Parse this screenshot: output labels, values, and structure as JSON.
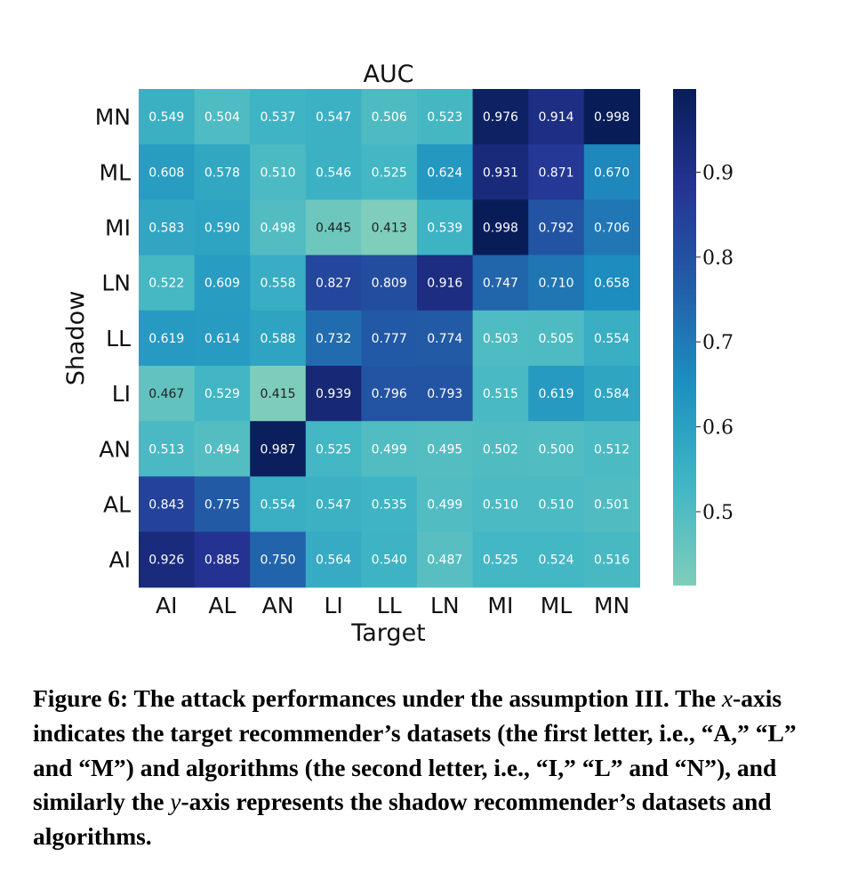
{
  "chart_data": {
    "type": "heatmap",
    "title": "AUC",
    "xlabel": "Target",
    "ylabel": "Shadow",
    "x_categories": [
      "AI",
      "AL",
      "AN",
      "LI",
      "LL",
      "LN",
      "MI",
      "ML",
      "MN"
    ],
    "y_categories": [
      "MN",
      "ML",
      "MI",
      "LN",
      "LL",
      "LI",
      "AN",
      "AL",
      "AI"
    ],
    "values": [
      [
        0.549,
        0.504,
        0.537,
        0.547,
        0.506,
        0.523,
        0.976,
        0.914,
        0.998
      ],
      [
        0.608,
        0.578,
        0.51,
        0.546,
        0.525,
        0.624,
        0.931,
        0.871,
        0.67
      ],
      [
        0.583,
        0.59,
        0.498,
        0.445,
        0.413,
        0.539,
        0.998,
        0.792,
        0.706
      ],
      [
        0.522,
        0.609,
        0.558,
        0.827,
        0.809,
        0.916,
        0.747,
        0.71,
        0.658
      ],
      [
        0.619,
        0.614,
        0.588,
        0.732,
        0.777,
        0.774,
        0.503,
        0.505,
        0.554
      ],
      [
        0.467,
        0.529,
        0.415,
        0.939,
        0.796,
        0.793,
        0.515,
        0.619,
        0.584
      ],
      [
        0.513,
        0.494,
        0.987,
        0.525,
        0.499,
        0.495,
        0.502,
        0.5,
        0.512
      ],
      [
        0.843,
        0.775,
        0.554,
        0.547,
        0.535,
        0.499,
        0.51,
        0.51,
        0.501
      ],
      [
        0.926,
        0.885,
        0.75,
        0.564,
        0.54,
        0.487,
        0.525,
        0.524,
        0.516
      ]
    ],
    "value_format": "3 decimals",
    "colorbar": {
      "range": [
        0.413,
        0.998
      ],
      "ticks": [
        0.5,
        0.6,
        0.7,
        0.8,
        0.9
      ],
      "tick_labels": [
        "0.5",
        "0.6",
        "0.7",
        "0.8",
        "0.9"
      ],
      "colormap_stops": [
        "#7fcdbb",
        "#41b6c4",
        "#1d91c0",
        "#225ea8",
        "#253494",
        "#081d58"
      ]
    },
    "grid": false
  },
  "caption": {
    "lead": "Figure 6:  The attack performances under the assumption III.",
    "part1": " The ",
    "x_italic": "x",
    "part2": "-axis indicates the target recommender’s datasets (the first letter, i.e., “A,” “L” and “M”) and algorithms (the second letter, i.e., “I,” “L” and “N”), and similarly the ",
    "y_italic": "y",
    "part3": "-axis represents the shadow recommender’s datasets and algorithms."
  }
}
